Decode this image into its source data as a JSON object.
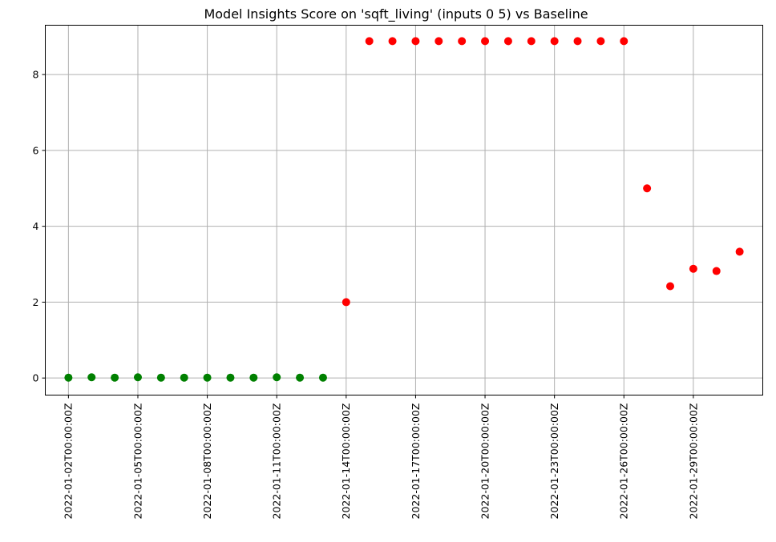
{
  "chart_data": {
    "type": "scatter",
    "title": "Model Insights Score on 'sqft_living' (inputs 0 5) vs Baseline",
    "xlabel": "",
    "ylabel": "",
    "x_ticks": [
      "2022-01-02T00:00:00Z",
      "2022-01-05T00:00:00Z",
      "2022-01-08T00:00:00Z",
      "2022-01-11T00:00:00Z",
      "2022-01-14T00:00:00Z",
      "2022-01-17T00:00:00Z",
      "2022-01-20T00:00:00Z",
      "2022-01-23T00:00:00Z",
      "2022-01-26T00:00:00Z",
      "2022-01-29T00:00:00Z"
    ],
    "y_ticks": [
      0,
      2,
      4,
      6,
      8
    ],
    "xlim": [
      "2022-01-01T00:00:00Z",
      "2022-02-01T00:00:00Z"
    ],
    "ylim": [
      -0.45,
      9.3
    ],
    "grid": true,
    "colors": {
      "ok": "#008000",
      "alert": "#ff0000"
    },
    "points": [
      {
        "x": "2022-01-02T00:00:00Z",
        "y": 0.01,
        "status": "ok"
      },
      {
        "x": "2022-01-03T00:00:00Z",
        "y": 0.02,
        "status": "ok"
      },
      {
        "x": "2022-01-04T00:00:00Z",
        "y": 0.01,
        "status": "ok"
      },
      {
        "x": "2022-01-05T00:00:00Z",
        "y": 0.02,
        "status": "ok"
      },
      {
        "x": "2022-01-06T00:00:00Z",
        "y": 0.01,
        "status": "ok"
      },
      {
        "x": "2022-01-07T00:00:00Z",
        "y": 0.01,
        "status": "ok"
      },
      {
        "x": "2022-01-08T00:00:00Z",
        "y": 0.01,
        "status": "ok"
      },
      {
        "x": "2022-01-09T00:00:00Z",
        "y": 0.01,
        "status": "ok"
      },
      {
        "x": "2022-01-10T00:00:00Z",
        "y": 0.01,
        "status": "ok"
      },
      {
        "x": "2022-01-11T00:00:00Z",
        "y": 0.02,
        "status": "ok"
      },
      {
        "x": "2022-01-12T00:00:00Z",
        "y": 0.01,
        "status": "ok"
      },
      {
        "x": "2022-01-13T00:00:00Z",
        "y": 0.01,
        "status": "ok"
      },
      {
        "x": "2022-01-14T00:00:00Z",
        "y": 2.0,
        "status": "alert"
      },
      {
        "x": "2022-01-15T00:00:00Z",
        "y": 8.88,
        "status": "alert"
      },
      {
        "x": "2022-01-16T00:00:00Z",
        "y": 8.88,
        "status": "alert"
      },
      {
        "x": "2022-01-17T00:00:00Z",
        "y": 8.88,
        "status": "alert"
      },
      {
        "x": "2022-01-18T00:00:00Z",
        "y": 8.88,
        "status": "alert"
      },
      {
        "x": "2022-01-19T00:00:00Z",
        "y": 8.88,
        "status": "alert"
      },
      {
        "x": "2022-01-20T00:00:00Z",
        "y": 8.88,
        "status": "alert"
      },
      {
        "x": "2022-01-21T00:00:00Z",
        "y": 8.88,
        "status": "alert"
      },
      {
        "x": "2022-01-22T00:00:00Z",
        "y": 8.88,
        "status": "alert"
      },
      {
        "x": "2022-01-23T00:00:00Z",
        "y": 8.88,
        "status": "alert"
      },
      {
        "x": "2022-01-24T00:00:00Z",
        "y": 8.88,
        "status": "alert"
      },
      {
        "x": "2022-01-25T00:00:00Z",
        "y": 8.88,
        "status": "alert"
      },
      {
        "x": "2022-01-26T00:00:00Z",
        "y": 8.88,
        "status": "alert"
      },
      {
        "x": "2022-01-27T00:00:00Z",
        "y": 5.0,
        "status": "alert"
      },
      {
        "x": "2022-01-28T00:00:00Z",
        "y": 2.42,
        "status": "alert"
      },
      {
        "x": "2022-01-29T00:00:00Z",
        "y": 2.88,
        "status": "alert"
      },
      {
        "x": "2022-01-30T00:00:00Z",
        "y": 2.82,
        "status": "alert"
      },
      {
        "x": "2022-01-31T00:00:00Z",
        "y": 3.33,
        "status": "alert"
      }
    ]
  }
}
